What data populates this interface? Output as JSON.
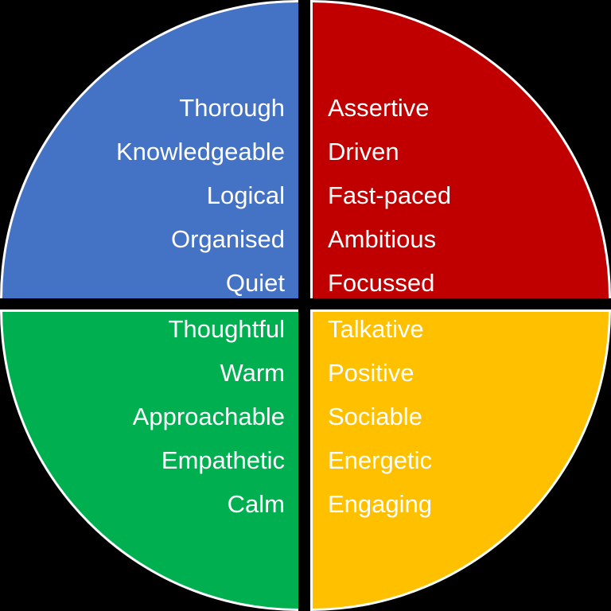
{
  "diagram": {
    "type": "four-quadrant-personality-wheel",
    "background_color": "#000000",
    "stroke_color": "#FFFFFF",
    "text_color": "#FFFFFF",
    "quadrants": {
      "top_left": {
        "color": "#4472C4",
        "color_name": "blue",
        "text_align": "right",
        "traits": [
          "Thorough",
          "Knowledgeable",
          "Logical",
          "Organised",
          "Quiet"
        ]
      },
      "top_right": {
        "color": "#C00000",
        "color_name": "red",
        "text_align": "left",
        "traits": [
          "Assertive",
          "Driven",
          "Fast-paced",
          "Ambitious",
          "Focussed"
        ]
      },
      "bottom_left": {
        "color": "#00B050",
        "color_name": "green",
        "text_align": "right",
        "traits": [
          "Thoughtful",
          "Warm",
          "Approachable",
          "Empathetic",
          "Calm"
        ]
      },
      "bottom_right": {
        "color": "#FFC000",
        "color_name": "gold",
        "text_align": "left",
        "traits": [
          "Talkative",
          "Positive",
          "Sociable",
          "Energetic",
          "Engaging"
        ]
      }
    }
  }
}
